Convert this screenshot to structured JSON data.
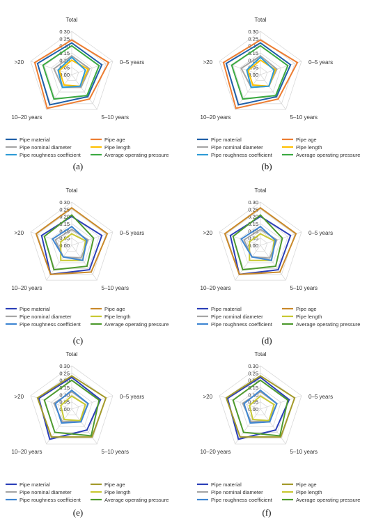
{
  "figure": {
    "axes": [
      "Total",
      "0–5 years",
      "5–10 years",
      "10–20 years",
      ">20"
    ],
    "ticks": [
      "0.00",
      "0.05",
      "0.10",
      "0.15",
      "0.20",
      "0.25",
      "0.30"
    ],
    "legend_labels": [
      "Pipe material",
      "Pipe age",
      "Pipe nominal diameter",
      "Pipe length",
      "Pipe roughness coefficient",
      "Average operating pressure"
    ]
  },
  "chart_data": [
    {
      "type": "radar",
      "panel_label": "(a)",
      "axes": [
        "Total",
        "0–5 years",
        "5–10 years",
        "10–20 years",
        ">20"
      ],
      "rlim": [
        0,
        0.3
      ],
      "colors": [
        "#1F5FA8",
        "#ED7D31",
        "#A5A5A5",
        "#FFC000",
        "#2E9BD6",
        "#3BAA42"
      ],
      "series": [
        {
          "name": "Pipe material",
          "values": [
            0.22,
            0.22,
            0.19,
            0.26,
            0.25
          ]
        },
        {
          "name": "Pipe age",
          "values": [
            0.24,
            0.27,
            0.21,
            0.29,
            0.27
          ]
        },
        {
          "name": "Pipe nominal diameter",
          "values": [
            0.13,
            0.13,
            0.11,
            0.11,
            0.13
          ]
        },
        {
          "name": "Pipe length",
          "values": [
            0.1,
            0.12,
            0.1,
            0.09,
            0.09
          ]
        },
        {
          "name": "Pipe roughness coefficient",
          "values": [
            0.12,
            0.1,
            0.1,
            0.11,
            0.1
          ]
        },
        {
          "name": "Average operating pressure",
          "values": [
            0.2,
            0.2,
            0.18,
            0.21,
            0.21
          ]
        }
      ]
    },
    {
      "type": "radar",
      "panel_label": "(b)",
      "axes": [
        "Total",
        "0–5 years",
        "5–10 years",
        "10–20 years",
        ">20"
      ],
      "rlim": [
        0,
        0.3
      ],
      "colors": [
        "#1F5FA8",
        "#ED7D31",
        "#A5A5A5",
        "#FFC000",
        "#2E9BD6",
        "#3BAA42"
      ],
      "series": [
        {
          "name": "Pipe material",
          "values": [
            0.22,
            0.22,
            0.19,
            0.26,
            0.25
          ]
        },
        {
          "name": "Pipe age",
          "values": [
            0.24,
            0.27,
            0.21,
            0.29,
            0.27
          ]
        },
        {
          "name": "Pipe nominal diameter",
          "values": [
            0.13,
            0.12,
            0.1,
            0.11,
            0.14
          ]
        },
        {
          "name": "Pipe length",
          "values": [
            0.1,
            0.11,
            0.1,
            0.09,
            0.09
          ]
        },
        {
          "name": "Pipe roughness coefficient",
          "values": [
            0.12,
            0.1,
            0.1,
            0.11,
            0.1
          ]
        },
        {
          "name": "Average operating pressure",
          "values": [
            0.2,
            0.2,
            0.18,
            0.21,
            0.21
          ]
        }
      ]
    },
    {
      "type": "radar",
      "panel_label": "(c)",
      "axes": [
        "Total",
        "0–5 years",
        "5–10 years",
        "10–20 years",
        ">20"
      ],
      "rlim": [
        0,
        0.3
      ],
      "colors": [
        "#2B3FB8",
        "#C9892A",
        "#A5A5A5",
        "#C8C832",
        "#3F86D2",
        "#4E9A2E"
      ],
      "series": [
        {
          "name": "Pipe material",
          "values": [
            0.2,
            0.22,
            0.21,
            0.25,
            0.22
          ]
        },
        {
          "name": "Pipe age",
          "values": [
            0.26,
            0.26,
            0.23,
            0.25,
            0.26
          ]
        },
        {
          "name": "Pipe nominal diameter",
          "values": [
            0.11,
            0.12,
            0.11,
            0.1,
            0.12
          ]
        },
        {
          "name": "Pipe length",
          "values": [
            0.08,
            0.1,
            0.13,
            0.13,
            0.08
          ]
        },
        {
          "name": "Pipe roughness coefficient",
          "values": [
            0.13,
            0.11,
            0.13,
            0.1,
            0.14
          ]
        },
        {
          "name": "Average operating pressure",
          "values": [
            0.21,
            0.16,
            0.18,
            0.21,
            0.2
          ]
        }
      ]
    },
    {
      "type": "radar",
      "panel_label": "(d)",
      "axes": [
        "Total",
        "0–5 years",
        "5–10 years",
        "10–20 years",
        ">20"
      ],
      "rlim": [
        0,
        0.3
      ],
      "colors": [
        "#2B3FB8",
        "#C9892A",
        "#A5A5A5",
        "#C8C832",
        "#3F86D2",
        "#4E9A2E"
      ],
      "series": [
        {
          "name": "Pipe material",
          "values": [
            0.2,
            0.22,
            0.21,
            0.25,
            0.22
          ]
        },
        {
          "name": "Pipe age",
          "values": [
            0.26,
            0.26,
            0.23,
            0.25,
            0.26
          ]
        },
        {
          "name": "Pipe nominal diameter",
          "values": [
            0.11,
            0.12,
            0.11,
            0.1,
            0.12
          ]
        },
        {
          "name": "Pipe length",
          "values": [
            0.08,
            0.1,
            0.13,
            0.13,
            0.08
          ]
        },
        {
          "name": "Pipe roughness coefficient",
          "values": [
            0.13,
            0.11,
            0.13,
            0.1,
            0.14
          ]
        },
        {
          "name": "Average operating pressure",
          "values": [
            0.21,
            0.16,
            0.18,
            0.21,
            0.2
          ]
        }
      ]
    },
    {
      "type": "radar",
      "panel_label": "(e)",
      "axes": [
        "Total",
        "0–5 years",
        "5–10 years",
        "10–20 years",
        ">20"
      ],
      "rlim": [
        0,
        0.3
      ],
      "colors": [
        "#2B3FB8",
        "#A39A2A",
        "#A5A5A5",
        "#C8C832",
        "#3F86D2",
        "#4E9A2E"
      ],
      "series": [
        {
          "name": "Pipe material",
          "values": [
            0.22,
            0.21,
            0.18,
            0.26,
            0.24
          ]
        },
        {
          "name": "Pipe age",
          "values": [
            0.23,
            0.25,
            0.24,
            0.24,
            0.25
          ]
        },
        {
          "name": "Pipe nominal diameter",
          "values": [
            0.12,
            0.12,
            0.1,
            0.11,
            0.13
          ]
        },
        {
          "name": "Pipe length",
          "values": [
            0.09,
            0.1,
            0.1,
            0.09,
            0.08
          ]
        },
        {
          "name": "Pipe roughness coefficient",
          "values": [
            0.13,
            0.12,
            0.11,
            0.12,
            0.12
          ]
        },
        {
          "name": "Average operating pressure",
          "values": [
            0.2,
            0.2,
            0.23,
            0.2,
            0.2
          ]
        }
      ]
    },
    {
      "type": "radar",
      "panel_label": "(f)",
      "axes": [
        "Total",
        "0–5 years",
        "5–10 years",
        "10–20 years",
        ">20"
      ],
      "rlim": [
        0,
        0.3
      ],
      "colors": [
        "#2B3FB8",
        "#A39A2A",
        "#A5A5A5",
        "#C8C832",
        "#3F86D2",
        "#4E9A2E"
      ],
      "series": [
        {
          "name": "Pipe material",
          "values": [
            0.22,
            0.21,
            0.18,
            0.26,
            0.24
          ]
        },
        {
          "name": "Pipe age",
          "values": [
            0.23,
            0.25,
            0.24,
            0.24,
            0.25
          ]
        },
        {
          "name": "Pipe nominal diameter",
          "values": [
            0.12,
            0.12,
            0.1,
            0.11,
            0.13
          ]
        },
        {
          "name": "Pipe length",
          "values": [
            0.09,
            0.1,
            0.1,
            0.09,
            0.08
          ]
        },
        {
          "name": "Pipe roughness coefficient",
          "values": [
            0.13,
            0.12,
            0.11,
            0.12,
            0.12
          ]
        },
        {
          "name": "Average operating pressure",
          "values": [
            0.2,
            0.2,
            0.23,
            0.2,
            0.2
          ]
        }
      ]
    }
  ]
}
